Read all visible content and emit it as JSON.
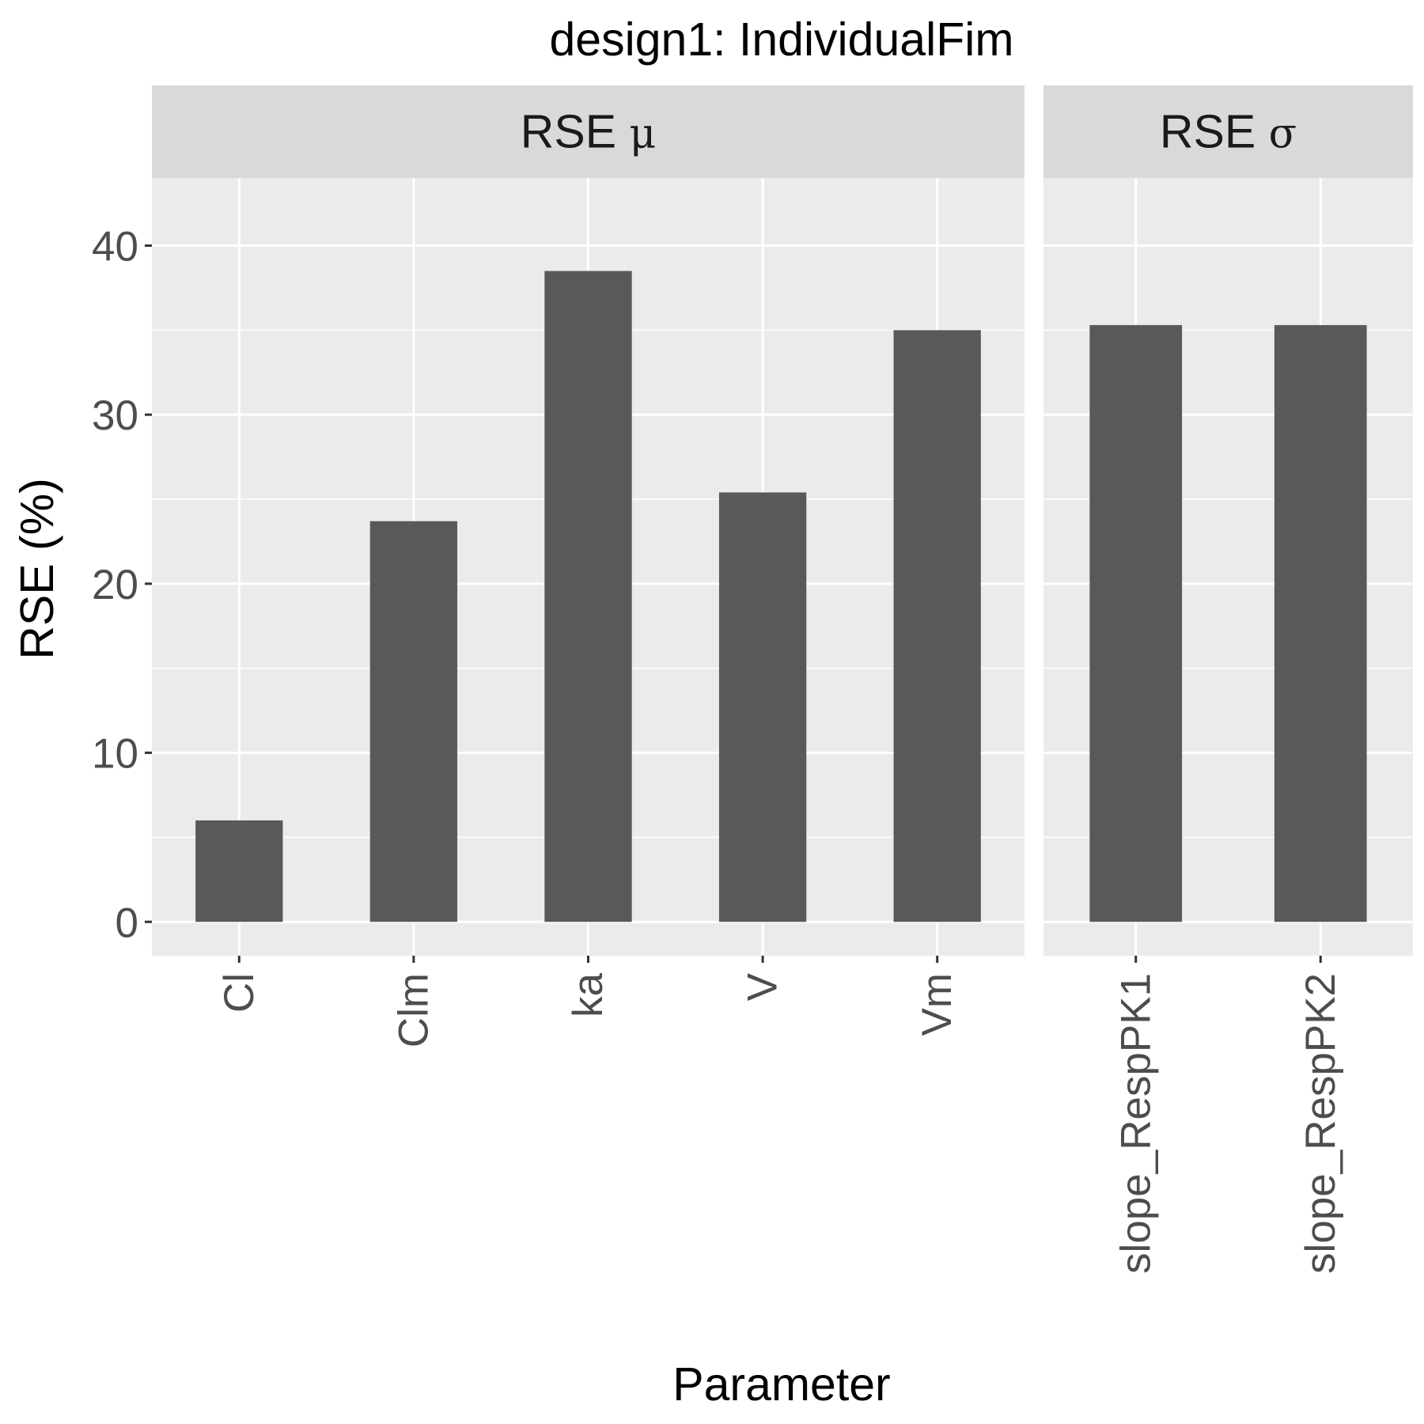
{
  "chart_data": {
    "type": "bar",
    "title": "design1: IndividualFim",
    "xlabel": "Parameter",
    "ylabel": "RSE (%)",
    "ylim": [
      -2,
      44
    ],
    "yticks": [
      0,
      10,
      20,
      30,
      40
    ],
    "grid": true,
    "bar_color": "#595959",
    "panel_bg": "#ebebeb",
    "strip_bg": "#d9d9d9",
    "panels": [
      {
        "strip_label": "RSE",
        "strip_symbol": "μ",
        "categories": [
          "Cl",
          "Clm",
          "ka",
          "V",
          "Vm"
        ],
        "values": [
          6.0,
          23.7,
          38.5,
          25.4,
          35.0
        ]
      },
      {
        "strip_label": "RSE",
        "strip_symbol": "σ",
        "categories": [
          "slope_RespPK1",
          "slope_RespPK2"
        ],
        "values": [
          35.3,
          35.3
        ]
      }
    ]
  }
}
